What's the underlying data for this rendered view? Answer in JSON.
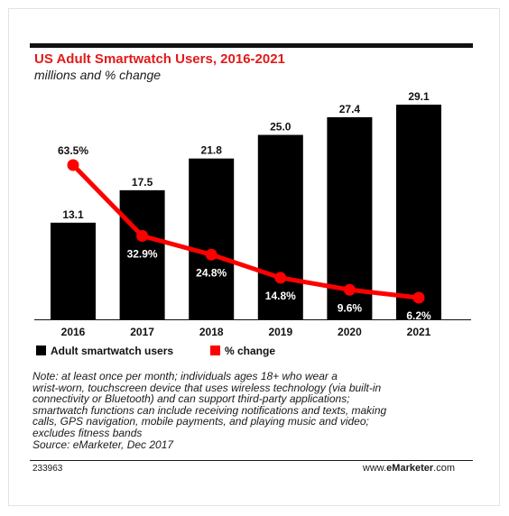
{
  "chart_data": {
    "type": "bar",
    "title": "US Adult Smartwatch Users, 2016-2021",
    "subtitle": "millions and % change",
    "categories": [
      "2016",
      "2017",
      "2018",
      "2019",
      "2020",
      "2021"
    ],
    "series": [
      {
        "name": "Adult smartwatch users",
        "type": "bar",
        "values": [
          13.1,
          17.5,
          21.8,
          25.0,
          27.4,
          29.1
        ],
        "labels": [
          "13.1",
          "17.5",
          "21.8",
          "25.0",
          "27.4",
          "29.1"
        ],
        "color": "#000000"
      },
      {
        "name": "% change",
        "type": "line",
        "values": [
          63.5,
          32.9,
          24.8,
          14.8,
          9.6,
          6.2
        ],
        "labels": [
          "63.5%",
          "32.9%",
          "24.8%",
          "14.8%",
          "9.6%",
          "6.2%"
        ],
        "color": "#ff0000"
      }
    ],
    "ylim": [
      0,
      29.1
    ],
    "y2lim": [
      0,
      63.5
    ],
    "grid": false,
    "legend_position": "bottom-left"
  },
  "note_lines": [
    "Note: at least once per month; individuals ages 18+ who wear a",
    "wrist-worn, touchscreen device that uses wireless technology (via built-in",
    "connectivity or Bluetooth) and can support third-party applications;",
    "smartwatch functions can include receiving notifications and texts, making",
    "calls, GPS navigation, mobile payments, and playing music and video;",
    "excludes fitness bands",
    "Source: eMarketer, Dec 2017"
  ],
  "footer": {
    "chart_id": "233963",
    "brand_prefix": "www.",
    "brand_bold": "eMarketer",
    "brand_suffix": ".com"
  },
  "colors": {
    "title": "#e21a1a",
    "bar": "#000000",
    "line": "#ff0000"
  }
}
